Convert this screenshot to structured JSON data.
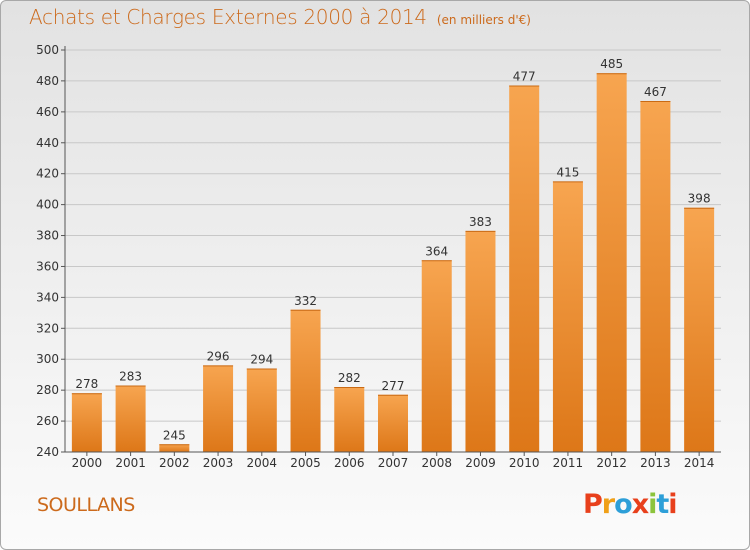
{
  "title": "Achats et Charges Externes 2000 à 2014",
  "unit": "(en milliers d'€)",
  "place": "SOULLANS",
  "logo": {
    "letters": [
      "P",
      "r",
      "o",
      "x",
      "i",
      "t",
      "i"
    ],
    "colors": [
      "#e8401c",
      "#f0a018",
      "#2d9fd8",
      "#e8401c",
      "#8cc43c",
      "#2d9fd8",
      "#e8401c"
    ]
  },
  "chart_data": {
    "type": "bar",
    "title": "Achats et Charges Externes 2000 à 2014",
    "subtitle": "(en milliers d'€)",
    "xlabel": "",
    "ylabel": "",
    "categories": [
      "2000",
      "2001",
      "2002",
      "2003",
      "2004",
      "2005",
      "2006",
      "2007",
      "2008",
      "2009",
      "2010",
      "2011",
      "2012",
      "2013",
      "2014"
    ],
    "values": [
      278,
      283,
      245,
      296,
      294,
      332,
      282,
      277,
      364,
      383,
      477,
      415,
      485,
      467,
      398
    ],
    "ylim": [
      240,
      500
    ],
    "yticks": [
      240,
      260,
      280,
      300,
      320,
      340,
      360,
      380,
      400,
      420,
      440,
      460,
      480,
      500
    ],
    "grid": true,
    "bar_color": "#f0902c"
  }
}
